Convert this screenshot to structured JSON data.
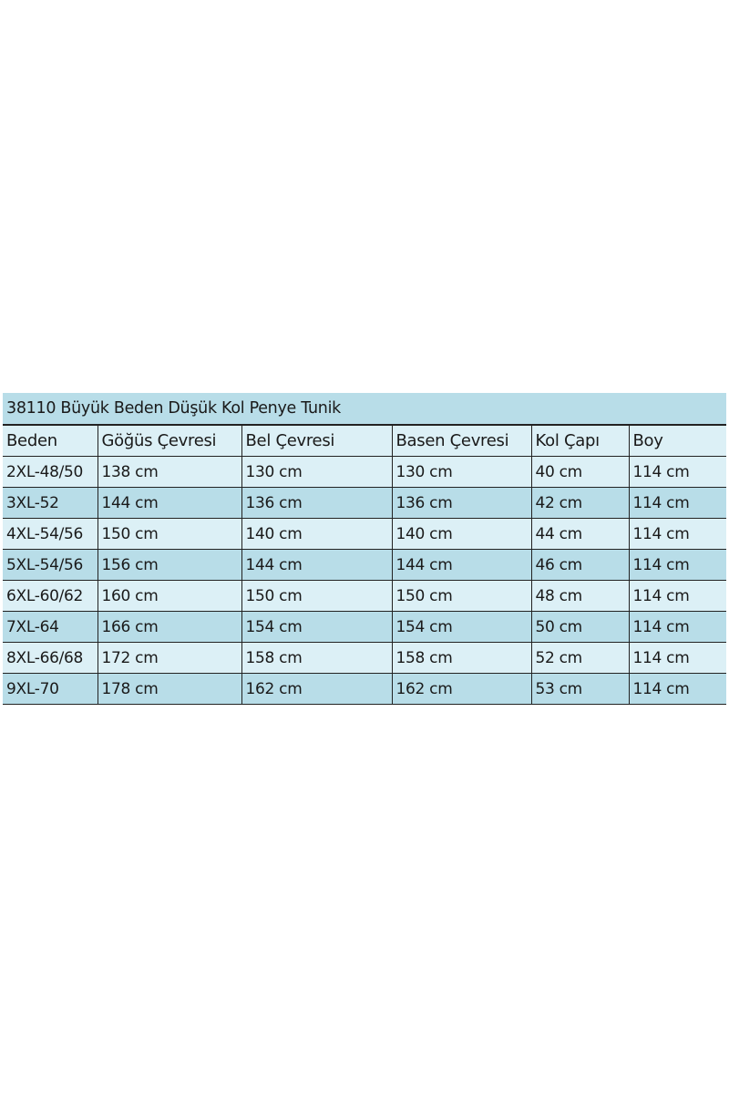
{
  "title": "38110 Büyük Beden Düşük Kol Penye Tunik",
  "headers": [
    "Beden",
    "Göğüs Çevresi",
    "Bel Çevresi",
    "Basen Çevresi",
    "Kol Çapı",
    "Boy"
  ],
  "rows": [
    [
      "2XL-48/50",
      "138 cm",
      "130 cm",
      "130 cm",
      "40 cm",
      "114 cm"
    ],
    [
      "3XL-52",
      "144 cm",
      "136 cm",
      "136 cm",
      "42 cm",
      "114 cm"
    ],
    [
      "4XL-54/56",
      "150 cm",
      "140 cm",
      "140 cm",
      "44 cm",
      "114 cm"
    ],
    [
      "5XL-54/56",
      "156 cm",
      "144 cm",
      "144 cm",
      "46 cm",
      "114 cm"
    ],
    [
      "6XL-60/62",
      "160 cm",
      "150 cm",
      "150 cm",
      "48 cm",
      "114 cm"
    ],
    [
      "7XL-64",
      "166 cm",
      "154 cm",
      "154 cm",
      "50 cm",
      "114 cm"
    ],
    [
      "8XL-66/68",
      "172 cm",
      "158 cm",
      "158 cm",
      "52 cm",
      "114 cm"
    ],
    [
      "9XL-70",
      "178 cm",
      "162 cm",
      "162 cm",
      "53 cm",
      "114 cm"
    ]
  ],
  "colors": {
    "row_blue": "#b8dde8",
    "row_light": "#dcf0f6",
    "border": "#222222"
  }
}
